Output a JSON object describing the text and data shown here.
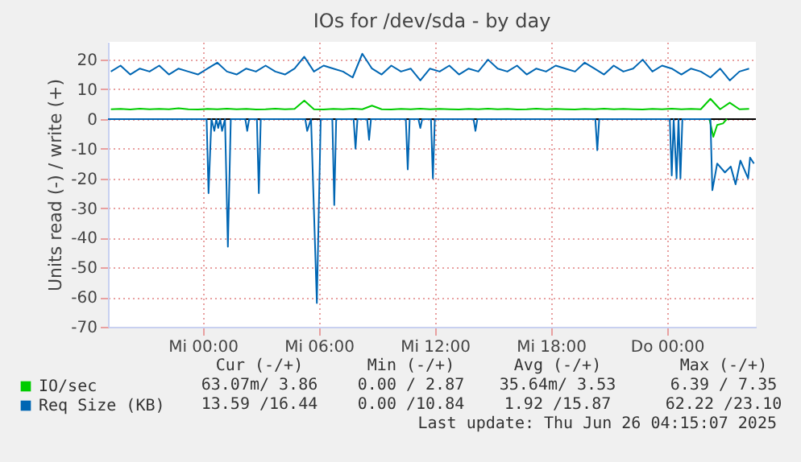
{
  "chart_data": {
    "type": "line",
    "title": "IOs for /dev/sda - by day",
    "ylabel": "Units read (-) / write (+)",
    "x": [
      "2025-06-24T19:15",
      "2025-06-24T19:45",
      "2025-06-24T20:15",
      "2025-06-24T20:45",
      "2025-06-24T21:15",
      "2025-06-24T21:45",
      "2025-06-24T22:15",
      "2025-06-24T22:45",
      "2025-06-24T23:15",
      "2025-06-24T23:45",
      "2025-06-25T00:15",
      "2025-06-25T00:45",
      "2025-06-25T01:15",
      "2025-06-25T01:45",
      "2025-06-25T02:15",
      "2025-06-25T02:45",
      "2025-06-25T03:15",
      "2025-06-25T03:45",
      "2025-06-25T04:15",
      "2025-06-25T04:45",
      "2025-06-25T05:15",
      "2025-06-25T05:45",
      "2025-06-25T06:15",
      "2025-06-25T06:45",
      "2025-06-25T07:15",
      "2025-06-25T07:45",
      "2025-06-25T08:15",
      "2025-06-25T08:45",
      "2025-06-25T09:15",
      "2025-06-25T09:45",
      "2025-06-25T10:15",
      "2025-06-25T10:45",
      "2025-06-25T11:15",
      "2025-06-25T11:45",
      "2025-06-25T12:15",
      "2025-06-25T12:45",
      "2025-06-25T13:15",
      "2025-06-25T13:45",
      "2025-06-25T14:15",
      "2025-06-25T14:45",
      "2025-06-25T15:15",
      "2025-06-25T15:45",
      "2025-06-25T16:15",
      "2025-06-25T16:45",
      "2025-06-25T17:15",
      "2025-06-25T17:45",
      "2025-06-25T18:15",
      "2025-06-25T18:45",
      "2025-06-25T19:15",
      "2025-06-25T19:45",
      "2025-06-25T20:15",
      "2025-06-25T20:45",
      "2025-06-25T21:15",
      "2025-06-25T21:45",
      "2025-06-25T22:15",
      "2025-06-25T22:45",
      "2025-06-25T23:15",
      "2025-06-25T23:45",
      "2025-06-26T00:15",
      "2025-06-26T00:45",
      "2025-06-26T01:15",
      "2025-06-26T01:45",
      "2025-06-26T02:15",
      "2025-06-26T02:45",
      "2025-06-26T03:15",
      "2025-06-26T03:45",
      "2025-06-26T04:15"
    ],
    "series": [
      {
        "name": "IO/sec",
        "color": "#00cc00",
        "values": [
          3.3,
          3.4,
          3.2,
          3.5,
          3.3,
          3.4,
          3.3,
          3.6,
          3.3,
          3.2,
          3.4,
          3.3,
          3.5,
          3.3,
          3.4,
          3.2,
          3.3,
          3.5,
          3.3,
          3.4,
          6.2,
          3.3,
          3.2,
          3.4,
          3.3,
          3.5,
          3.3,
          4.5,
          3.3,
          3.2,
          3.4,
          3.3,
          3.5,
          3.3,
          3.4,
          3.3,
          3.2,
          3.4,
          3.3,
          3.5,
          3.3,
          3.4,
          3.2,
          3.3,
          3.5,
          3.3,
          3.4,
          3.3,
          3.2,
          3.4,
          3.3,
          3.5,
          3.3,
          3.4,
          3.3,
          3.2,
          3.4,
          3.3,
          3.5,
          3.3,
          3.4,
          3.3,
          6.8,
          3.3,
          5.5,
          3.3,
          3.4
        ]
      },
      {
        "color": "#00cc00",
        "x": [
          "2025-06-26T02:12",
          "2025-06-26T02:24",
          "2025-06-26T02:36",
          "2025-06-26T02:54",
          "2025-06-26T03:06"
        ],
        "values": [
          0,
          -6,
          -2,
          -1.5,
          0
        ]
      },
      {
        "name": "Req Size (KB)",
        "color": "#0066b3",
        "values": [
          16,
          18,
          15,
          17,
          16,
          18,
          15,
          17,
          16,
          15,
          17,
          19,
          16,
          15,
          17,
          16,
          18,
          16,
          15,
          17,
          21,
          16,
          18,
          17,
          16,
          14,
          22,
          17,
          15,
          18,
          16,
          17,
          13,
          17,
          16,
          18,
          15,
          17,
          16,
          20,
          17,
          16,
          18,
          15,
          17,
          16,
          18,
          17,
          16,
          19,
          17,
          15,
          18,
          16,
          17,
          20,
          16,
          18,
          17,
          15,
          17,
          16,
          14,
          17,
          13,
          16,
          17
        ]
      },
      {
        "color": "#0066b3",
        "x": [
          "2025-06-24T19:06",
          "2025-06-25T00:12",
          "2025-06-25T00:18",
          "2025-06-25T00:27",
          "2025-06-25T00:36",
          "2025-06-25T00:42",
          "2025-06-25T00:48",
          "2025-06-25T00:54",
          "2025-06-25T01:00",
          "2025-06-25T01:09",
          "2025-06-25T01:18",
          "2025-06-25T01:27",
          "2025-06-25T02:12",
          "2025-06-25T02:18",
          "2025-06-25T02:24",
          "2025-06-25T02:48",
          "2025-06-25T02:54",
          "2025-06-25T03:00",
          "2025-06-25T05:18",
          "2025-06-25T05:24",
          "2025-06-25T05:36",
          "2025-06-25T05:54",
          "2025-06-25T06:06",
          "2025-06-25T06:42",
          "2025-06-25T06:48",
          "2025-06-25T06:54",
          "2025-06-25T07:48",
          "2025-06-25T07:54",
          "2025-06-25T08:00",
          "2025-06-25T08:30",
          "2025-06-25T08:36",
          "2025-06-25T08:42",
          "2025-06-25T10:30",
          "2025-06-25T10:36",
          "2025-06-25T10:42",
          "2025-06-25T11:09",
          "2025-06-25T11:15",
          "2025-06-25T11:21",
          "2025-06-25T11:48",
          "2025-06-25T11:54",
          "2025-06-25T12:00",
          "2025-06-25T14:00",
          "2025-06-25T14:06",
          "2025-06-25T14:12",
          "2025-06-25T20:18",
          "2025-06-25T20:24",
          "2025-06-25T20:30",
          "2025-06-26T00:09",
          "2025-06-26T00:15",
          "2025-06-26T00:21",
          "2025-06-26T00:30",
          "2025-06-26T00:36",
          "2025-06-26T00:42",
          "2025-06-26T00:48",
          "2025-06-26T02:15",
          "2025-06-26T02:21",
          "2025-06-26T02:36",
          "2025-06-26T03:00",
          "2025-06-26T03:18",
          "2025-06-26T03:33",
          "2025-06-26T03:48",
          "2025-06-26T04:12",
          "2025-06-26T04:18",
          "2025-06-26T04:30"
        ],
        "values": [
          0,
          0,
          -25,
          0,
          -4,
          0,
          -3,
          0,
          -4,
          0,
          -43,
          0,
          0,
          -4,
          0,
          0,
          -25,
          0,
          0,
          -4,
          0,
          -62,
          0,
          0,
          -29,
          0,
          0,
          -10,
          0,
          0,
          -7,
          0,
          0,
          -17,
          0,
          0,
          -3,
          0,
          0,
          -20,
          0,
          0,
          -4,
          0,
          0,
          -10.5,
          0,
          0,
          -19,
          0,
          -20,
          0,
          -20,
          0,
          0,
          -24,
          -15,
          -18,
          -16,
          -22,
          -14,
          -20,
          -13,
          -15
        ]
      }
    ],
    "xlim": [
      "2025-06-24T19:06",
      "2025-06-26T04:36"
    ],
    "xticks": [
      {
        "value": "2025-06-25T00:00",
        "label": "Mi 00:00"
      },
      {
        "value": "2025-06-25T06:00",
        "label": "Mi 06:00"
      },
      {
        "value": "2025-06-25T12:00",
        "label": "Mi 12:00"
      },
      {
        "value": "2025-06-25T18:00",
        "label": "Mi 18:00"
      },
      {
        "value": "2025-06-26T00:00",
        "label": "Do 00:00"
      }
    ],
    "ylim": [
      -70,
      26
    ],
    "yticks": [
      -70,
      -60,
      -50,
      -40,
      -30,
      -20,
      -10,
      0,
      10,
      20
    ],
    "grid": true,
    "legend": "bottom",
    "marker": "none",
    "line_style": "solid",
    "ref_lines": [
      {
        "axis": "y",
        "value": 0,
        "color": "#000000"
      }
    ],
    "annotations": [
      "Cur (-/+)",
      "Min (-/+)",
      "Avg (-/+)",
      "Max (-/+)",
      "63.07m/ 3.86",
      "0.00 / 2.87",
      "35.64m/ 3.53",
      "6.39 / 7.35",
      "13.59 /16.44",
      "0.00 /10.84",
      "1.92 /15.87",
      "62.22 /23.10",
      "Last update: Thu Jun 26 04:15:07 2025"
    ]
  }
}
